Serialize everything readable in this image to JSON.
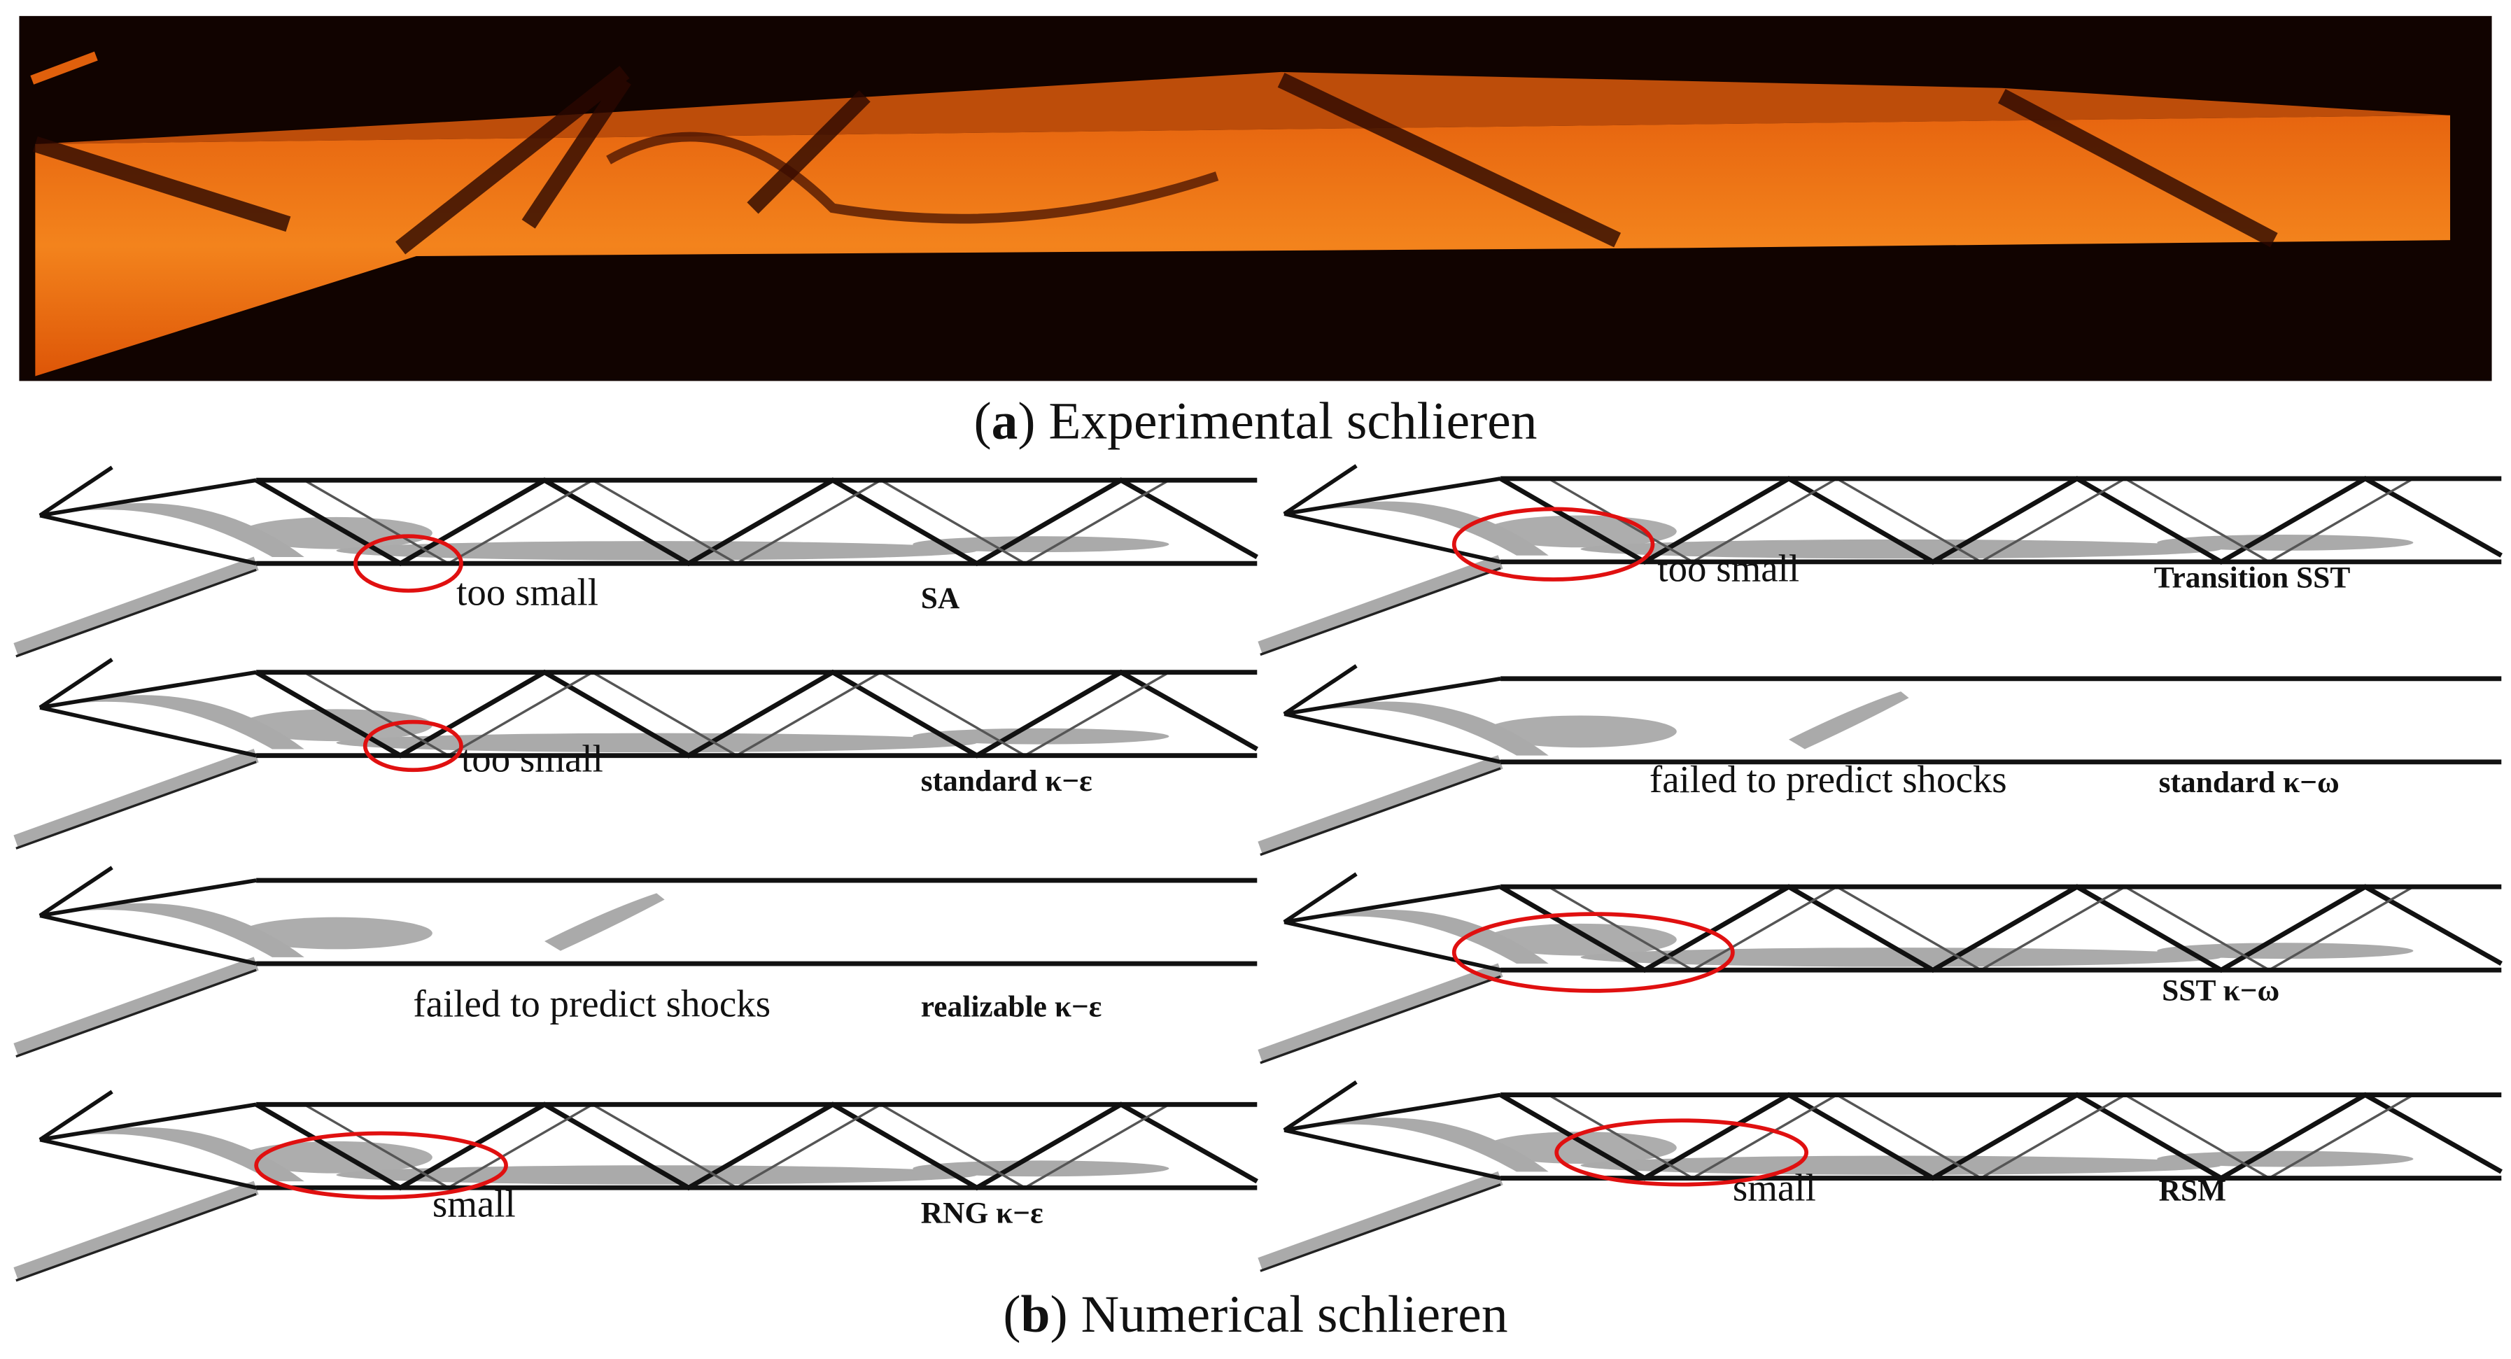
{
  "figure": {
    "caption_a": {
      "open": "(",
      "label": "a",
      "rest": ") Experimental schlieren"
    },
    "caption_b": {
      "open": "(",
      "label": "b",
      "rest": ") Numerical schlieren"
    },
    "panels": [
      {
        "model": "SA",
        "annotation": "too small"
      },
      {
        "model": "standard κ−ε",
        "annotation": "too small"
      },
      {
        "model": "realizable κ−ε",
        "annotation": "failed to predict shocks"
      },
      {
        "model": "RNG κ−ε",
        "annotation": "small"
      },
      {
        "model": "Transition SST",
        "annotation": "too small"
      },
      {
        "model": "standard κ−ω",
        "annotation": "failed to predict shocks"
      },
      {
        "model": "SST κ−ω"
      },
      {
        "model": "RSM",
        "annotation": "small"
      }
    ]
  }
}
